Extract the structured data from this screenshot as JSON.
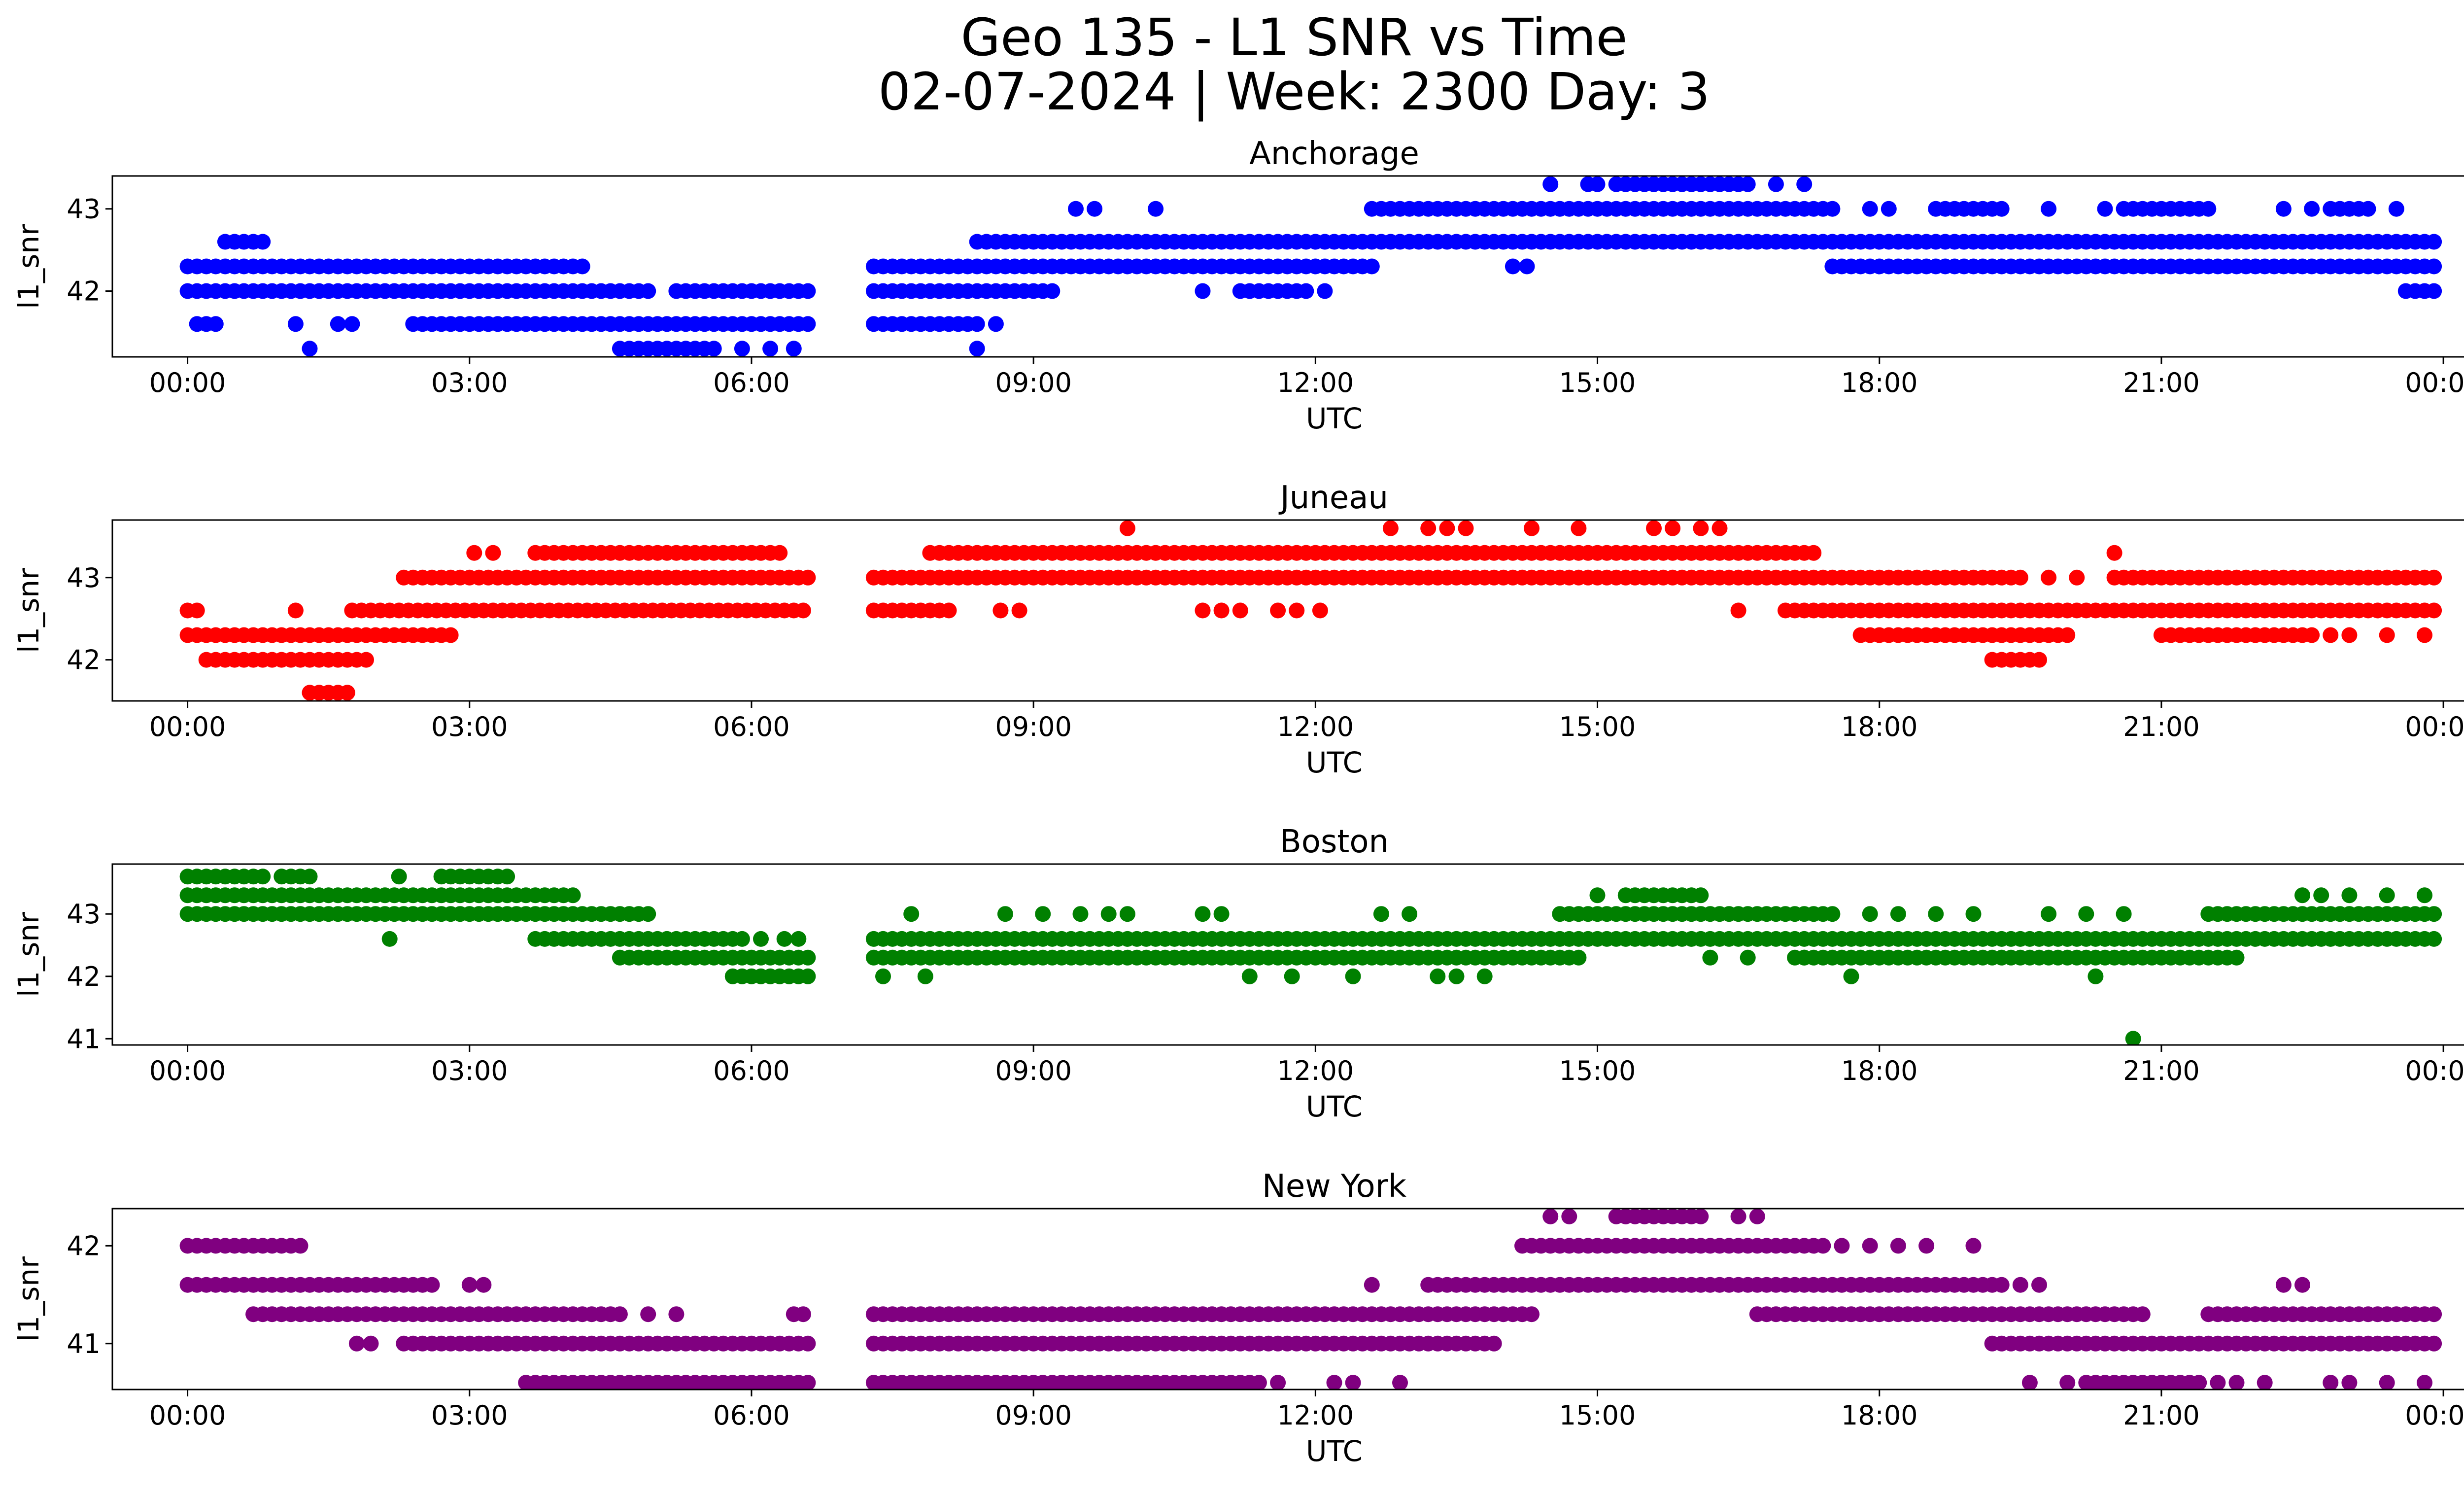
{
  "figure": {
    "title_line1": "Geo 135 - L1 SNR vs Time",
    "title_line2": "02-07-2024 | Week: 2300 Day: 3"
  },
  "chart_data": [
    {
      "type": "scatter",
      "title": "Anchorage",
      "color": "#0000ff",
      "xlabel": "UTC",
      "ylabel": "l1_snr",
      "xlim": [
        -0.8,
        25.2
      ],
      "ylim": [
        41.2,
        43.4
      ],
      "xticks": [
        "00:00",
        "03:00",
        "06:00",
        "09:00",
        "12:00",
        "15:00",
        "18:00",
        "21:00",
        "00:00"
      ],
      "yticks": [
        42,
        43
      ],
      "segments": [
        {
          "y": 42.3,
          "x": [
            [
              0.0,
              4.2
            ]
          ]
        },
        {
          "y": 42.0,
          "x": [
            [
              0.0,
              4.9
            ]
          ]
        },
        {
          "y": 42.6,
          "x": [
            [
              0.4,
              0.8
            ]
          ]
        },
        {
          "y": 41.6,
          "x": [
            [
              0.1,
              0.35
            ],
            [
              2.4,
              6.6
            ]
          ]
        },
        {
          "y": 41.3,
          "x": [
            [
              4.6,
              5.5
            ]
          ]
        },
        {
          "y": 42.0,
          "x": [
            [
              5.2,
              6.6
            ]
          ]
        },
        {
          "y": 42.3,
          "x": [
            [
              7.3,
              12.6
            ]
          ]
        },
        {
          "y": 42.0,
          "x": [
            [
              7.3,
              9.2
            ],
            [
              11.2,
              11.9
            ]
          ]
        },
        {
          "y": 41.6,
          "x": [
            [
              7.3,
              8.4
            ]
          ]
        },
        {
          "y": 42.6,
          "x": [
            [
              8.4,
              23.9
            ]
          ]
        },
        {
          "y": 43.0,
          "x": [
            [
              12.6,
              17.5
            ],
            [
              18.6,
              19.3
            ],
            [
              20.6,
              21.5
            ],
            [
              22.8,
              23.2
            ]
          ]
        },
        {
          "y": 43.3,
          "x": [
            [
              15.2,
              16.6
            ]
          ]
        },
        {
          "y": 42.3,
          "x": [
            [
              17.5,
              23.9
            ]
          ]
        },
        {
          "y": 42.0,
          "x": [
            [
              23.6,
              23.9
            ]
          ]
        }
      ],
      "points": [
        [
          1.15,
          41.6
        ],
        [
          1.3,
          41.3
        ],
        [
          1.6,
          41.6
        ],
        [
          1.75,
          41.6
        ],
        [
          5.6,
          41.3
        ],
        [
          5.9,
          41.3
        ],
        [
          6.2,
          41.3
        ],
        [
          6.45,
          41.3
        ],
        [
          8.6,
          41.6
        ],
        [
          8.4,
          41.3
        ],
        [
          9.45,
          43.0
        ],
        [
          9.65,
          43.0
        ],
        [
          10.3,
          43.0
        ],
        [
          10.8,
          42.0
        ],
        [
          12.1,
          42.0
        ],
        [
          14.1,
          42.3
        ],
        [
          14.25,
          42.3
        ],
        [
          14.5,
          43.3
        ],
        [
          14.9,
          43.3
        ],
        [
          15.0,
          43.3
        ],
        [
          15.6,
          43.3
        ],
        [
          16.9,
          43.3
        ],
        [
          17.2,
          43.3
        ],
        [
          15.8,
          42.6
        ],
        [
          16.2,
          42.6
        ],
        [
          16.4,
          42.6
        ],
        [
          17.9,
          43.0
        ],
        [
          18.1,
          43.0
        ],
        [
          19.8,
          43.0
        ],
        [
          20.4,
          43.0
        ],
        [
          22.3,
          43.0
        ],
        [
          22.6,
          43.0
        ],
        [
          23.5,
          43.0
        ]
      ]
    },
    {
      "type": "scatter",
      "title": "Juneau",
      "color": "#ff0000",
      "xlabel": "UTC",
      "ylabel": "l1_snr",
      "xlim": [
        -0.8,
        25.2
      ],
      "ylim": [
        41.5,
        43.7
      ],
      "xticks": [
        "00:00",
        "03:00",
        "06:00",
        "09:00",
        "12:00",
        "15:00",
        "18:00",
        "21:00",
        "00:00"
      ],
      "yticks": [
        42,
        43
      ],
      "segments": [
        {
          "y": 42.6,
          "x": [
            [
              0.0,
              0.15
            ],
            [
              1.75,
              6.6
            ]
          ]
        },
        {
          "y": 42.3,
          "x": [
            [
              0.0,
              2.8
            ]
          ]
        },
        {
          "y": 42.0,
          "x": [
            [
              0.2,
              1.9
            ]
          ]
        },
        {
          "y": 41.6,
          "x": [
            [
              1.3,
              1.7
            ]
          ]
        },
        {
          "y": 43.0,
          "x": [
            [
              2.3,
              6.6
            ],
            [
              7.3,
              19.5
            ],
            [
              20.5,
              23.9
            ]
          ]
        },
        {
          "y": 43.3,
          "x": [
            [
              3.7,
              6.3
            ],
            [
              7.9,
              17.3
            ]
          ]
        },
        {
          "y": 42.6,
          "x": [
            [
              7.3,
              8.1
            ],
            [
              17.0,
              23.9
            ]
          ]
        },
        {
          "y": 42.3,
          "x": [
            [
              17.8,
              20.0
            ],
            [
              21.0,
              22.6
            ]
          ]
        },
        {
          "y": 42.0,
          "x": [
            [
              19.2,
              19.7
            ]
          ]
        }
      ],
      "points": [
        [
          1.15,
          42.6
        ],
        [
          3.05,
          43.3
        ],
        [
          3.25,
          43.3
        ],
        [
          8.65,
          42.6
        ],
        [
          8.85,
          42.6
        ],
        [
          10.0,
          43.6
        ],
        [
          10.8,
          42.6
        ],
        [
          11.0,
          42.6
        ],
        [
          11.2,
          42.6
        ],
        [
          11.6,
          42.6
        ],
        [
          11.8,
          42.6
        ],
        [
          12.05,
          42.6
        ],
        [
          12.8,
          43.6
        ],
        [
          13.2,
          43.6
        ],
        [
          13.4,
          43.6
        ],
        [
          13.6,
          43.6
        ],
        [
          14.3,
          43.6
        ],
        [
          14.8,
          43.6
        ],
        [
          15.6,
          43.6
        ],
        [
          15.8,
          43.6
        ],
        [
          16.1,
          43.6
        ],
        [
          16.3,
          43.6
        ],
        [
          16.5,
          42.6
        ],
        [
          19.8,
          43.0
        ],
        [
          20.1,
          43.0
        ],
        [
          20.5,
          43.3
        ],
        [
          22.8,
          42.3
        ],
        [
          23.0,
          42.3
        ],
        [
          23.4,
          42.3
        ],
        [
          23.8,
          42.3
        ]
      ]
    },
    {
      "type": "scatter",
      "title": "Boston",
      "color": "#008000",
      "xlabel": "UTC",
      "ylabel": "l1_snr",
      "xlim": [
        -0.8,
        25.2
      ],
      "ylim": [
        40.9,
        43.8
      ],
      "xticks": [
        "00:00",
        "03:00",
        "06:00",
        "09:00",
        "12:00",
        "15:00",
        "18:00",
        "21:00",
        "00:00"
      ],
      "yticks": [
        41,
        42,
        43
      ],
      "segments": [
        {
          "y": 43.6,
          "x": [
            [
              0.0,
              0.8
            ],
            [
              1.0,
              1.3
            ],
            [
              2.7,
              3.4
            ]
          ]
        },
        {
          "y": 43.3,
          "x": [
            [
              0.0,
              4.1
            ]
          ]
        },
        {
          "y": 43.0,
          "x": [
            [
              0.0,
              4.9
            ]
          ]
        },
        {
          "y": 42.6,
          "x": [
            [
              3.7,
              5.9
            ],
            [
              7.3,
              23.9
            ]
          ]
        },
        {
          "y": 42.3,
          "x": [
            [
              4.6,
              6.6
            ],
            [
              7.3,
              14.8
            ],
            [
              17.1,
              21.8
            ]
          ]
        },
        {
          "y": 42.0,
          "x": [
            [
              5.8,
              6.6
            ]
          ]
        },
        {
          "y": 43.0,
          "x": [
            [
              14.6,
              17.5
            ],
            [
              21.5,
              23.9
            ]
          ]
        },
        {
          "y": 43.3,
          "x": [
            [
              15.3,
              16.1
            ]
          ]
        }
      ],
      "points": [
        [
          2.15,
          42.6
        ],
        [
          2.25,
          43.6
        ],
        [
          6.1,
          42.6
        ],
        [
          6.35,
          42.6
        ],
        [
          6.5,
          42.6
        ],
        [
          7.4,
          42.0
        ],
        [
          7.85,
          42.0
        ],
        [
          7.7,
          43.0
        ],
        [
          8.7,
          43.0
        ],
        [
          9.1,
          43.0
        ],
        [
          9.5,
          43.0
        ],
        [
          9.8,
          43.0
        ],
        [
          10.0,
          43.0
        ],
        [
          10.8,
          43.0
        ],
        [
          11.0,
          43.0
        ],
        [
          11.3,
          42.0
        ],
        [
          11.75,
          42.0
        ],
        [
          12.4,
          42.0
        ],
        [
          12.7,
          43.0
        ],
        [
          13.0,
          43.0
        ],
        [
          13.3,
          42.0
        ],
        [
          13.5,
          42.0
        ],
        [
          13.8,
          42.0
        ],
        [
          15.0,
          43.3
        ],
        [
          16.2,
          42.3
        ],
        [
          16.6,
          42.3
        ],
        [
          17.2,
          42.3
        ],
        [
          17.7,
          42.0
        ],
        [
          17.9,
          43.0
        ],
        [
          18.2,
          43.0
        ],
        [
          18.6,
          43.0
        ],
        [
          19.0,
          43.0
        ],
        [
          19.8,
          43.0
        ],
        [
          20.2,
          43.0
        ],
        [
          20.3,
          42.0
        ],
        [
          20.6,
          43.0
        ],
        [
          20.7,
          41.0
        ],
        [
          22.5,
          43.3
        ],
        [
          22.7,
          43.3
        ],
        [
          23.0,
          43.3
        ],
        [
          23.4,
          43.3
        ],
        [
          23.8,
          43.3
        ]
      ]
    },
    {
      "type": "scatter",
      "title": "New York",
      "color": "#800080",
      "xlabel": "UTC",
      "ylabel": "l1_snr",
      "xlim": [
        -0.8,
        25.2
      ],
      "ylim": [
        40.53,
        42.38
      ],
      "xticks": [
        "00:00",
        "03:00",
        "06:00",
        "09:00",
        "12:00",
        "15:00",
        "18:00",
        "21:00",
        "00:00"
      ],
      "yticks": [
        41,
        42
      ],
      "segments": [
        {
          "y": 42.0,
          "x": [
            [
              0.0,
              1.2
            ],
            [
              14.2,
              17.4
            ]
          ]
        },
        {
          "y": 41.6,
          "x": [
            [
              0.0,
              2.6
            ],
            [
              13.2,
              19.3
            ]
          ]
        },
        {
          "y": 41.3,
          "x": [
            [
              0.7,
              4.6
            ],
            [
              7.3,
              14.3
            ],
            [
              16.7,
              20.8
            ],
            [
              21.5,
              23.9
            ]
          ]
        },
        {
          "y": 41.0,
          "x": [
            [
              2.3,
              6.6
            ],
            [
              7.3,
              13.9
            ],
            [
              19.2,
              23.9
            ]
          ]
        },
        {
          "y": 40.6,
          "x": [
            [
              3.6,
              6.6
            ],
            [
              7.3,
              11.4
            ],
            [
              20.3,
              21.4
            ]
          ]
        },
        {
          "y": 42.3,
          "x": [
            [
              15.2,
              16.1
            ]
          ]
        }
      ],
      "points": [
        [
          1.8,
          41.0
        ],
        [
          1.95,
          41.0
        ],
        [
          3.0,
          41.6
        ],
        [
          3.15,
          41.6
        ],
        [
          4.9,
          41.3
        ],
        [
          5.2,
          41.3
        ],
        [
          6.45,
          41.3
        ],
        [
          6.55,
          41.3
        ],
        [
          11.6,
          40.6
        ],
        [
          12.2,
          40.6
        ],
        [
          12.4,
          40.6
        ],
        [
          12.9,
          40.6
        ],
        [
          12.6,
          41.6
        ],
        [
          14.5,
          42.3
        ],
        [
          14.7,
          42.3
        ],
        [
          16.5,
          42.3
        ],
        [
          16.7,
          42.3
        ],
        [
          17.6,
          42.0
        ],
        [
          17.9,
          42.0
        ],
        [
          18.2,
          42.0
        ],
        [
          18.5,
          42.0
        ],
        [
          19.0,
          42.0
        ],
        [
          19.5,
          41.6
        ],
        [
          19.7,
          41.6
        ],
        [
          19.6,
          40.6
        ],
        [
          20.0,
          40.6
        ],
        [
          20.2,
          40.6
        ],
        [
          21.6,
          40.6
        ],
        [
          21.8,
          40.6
        ],
        [
          22.0,
          41.3
        ],
        [
          22.1,
          40.6
        ],
        [
          22.3,
          41.6
        ],
        [
          22.5,
          41.6
        ],
        [
          22.8,
          40.6
        ],
        [
          23.0,
          40.6
        ],
        [
          23.4,
          40.6
        ],
        [
          23.8,
          40.6
        ]
      ]
    }
  ]
}
